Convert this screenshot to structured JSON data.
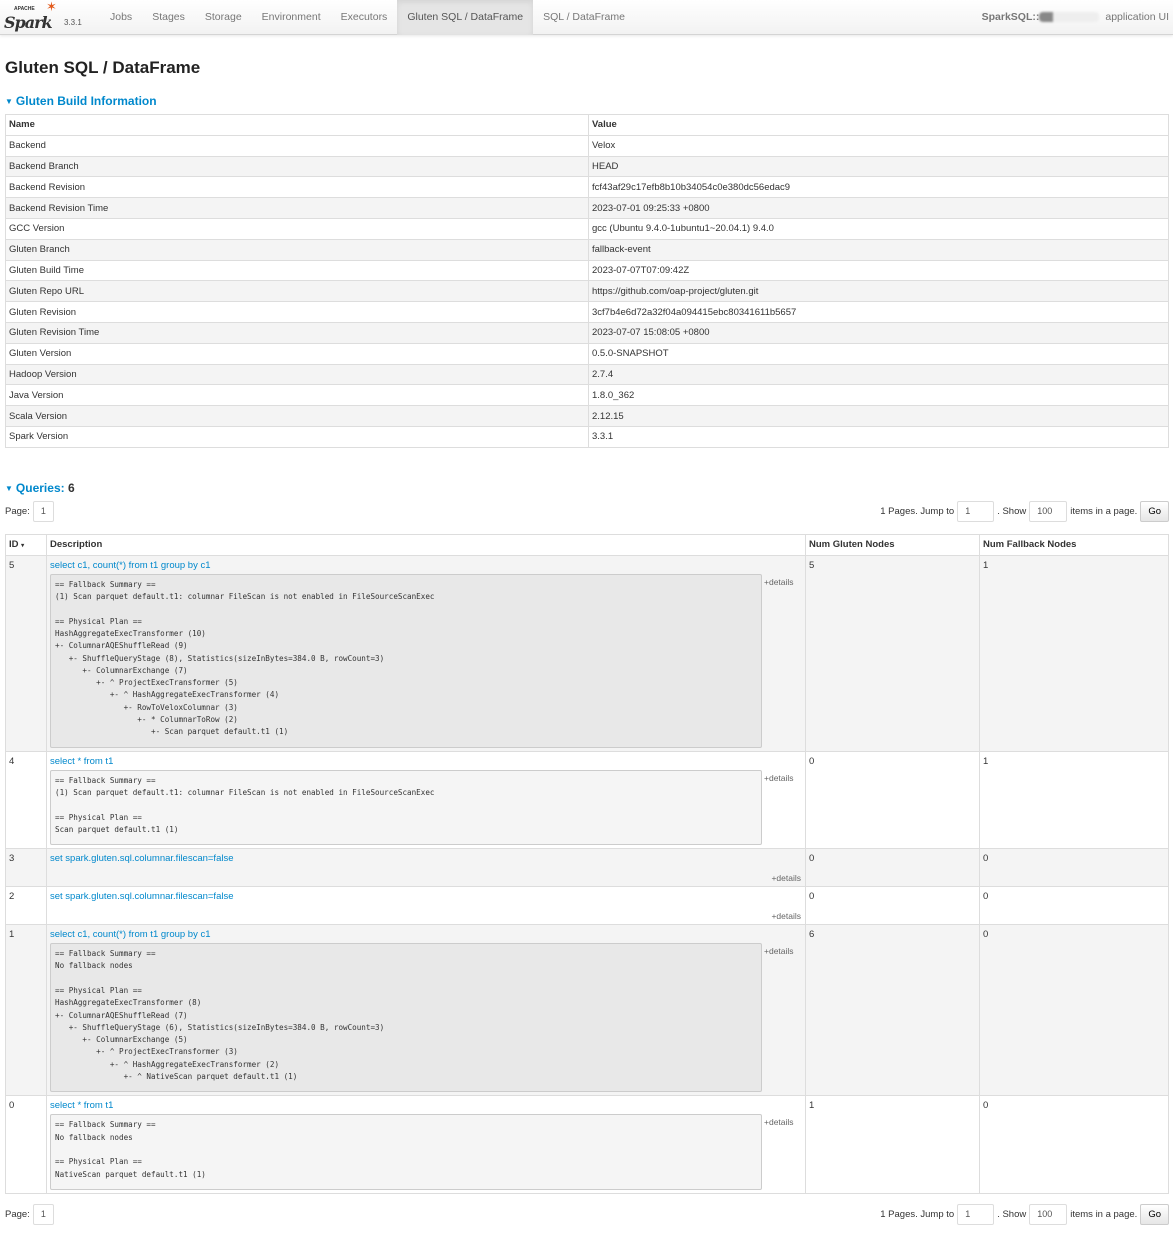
{
  "nav": {
    "logo_text": "Spark",
    "logo_apache": "APACHE",
    "version": "3.3.1",
    "tabs": [
      "Jobs",
      "Stages",
      "Storage",
      "Environment",
      "Executors",
      "Gluten SQL / DataFrame",
      "SQL / DataFrame"
    ],
    "active_tab": 5,
    "app_prefix": "SparkSQL::",
    "app_suffix": "application UI"
  },
  "page_title": "Gluten SQL / DataFrame",
  "build": {
    "heading": "Gluten Build Information",
    "columns": [
      "Name",
      "Value"
    ],
    "rows": [
      [
        "Backend",
        "Velox"
      ],
      [
        "Backend Branch",
        "HEAD"
      ],
      [
        "Backend Revision",
        "fcf43af29c17efb8b10b34054c0e380dc56edac9"
      ],
      [
        "Backend Revision Time",
        "2023-07-01 09:25:33 +0800"
      ],
      [
        "GCC Version",
        "gcc (Ubuntu 9.4.0-1ubuntu1~20.04.1) 9.4.0"
      ],
      [
        "Gluten Branch",
        "fallback-event"
      ],
      [
        "Gluten Build Time",
        "2023-07-07T07:09:42Z"
      ],
      [
        "Gluten Repo URL",
        "https://github.com/oap-project/gluten.git"
      ],
      [
        "Gluten Revision",
        "3cf7b4e6d72a32f04a094415ebc80341611b5657"
      ],
      [
        "Gluten Revision Time",
        "2023-07-07 15:08:05 +0800"
      ],
      [
        "Gluten Version",
        "0.5.0-SNAPSHOT"
      ],
      [
        "Hadoop Version",
        "2.7.4"
      ],
      [
        "Java Version",
        "1.8.0_362"
      ],
      [
        "Scala Version",
        "2.12.15"
      ],
      [
        "Spark Version",
        "3.3.1"
      ]
    ]
  },
  "queries": {
    "heading": "Queries:",
    "count": "6",
    "pager": {
      "page_label": "Page:",
      "page": "1",
      "pages_text": "1 Pages. Jump to",
      "jump_value": "1",
      "show_text": ". Show",
      "show_value": "100",
      "items_text": "items in a page.",
      "go_label": "Go"
    },
    "columns": [
      "ID",
      "Description",
      "Num Gluten Nodes",
      "Num Fallback Nodes"
    ],
    "sort_indicator": "▾",
    "details_label": "+details",
    "rows": [
      {
        "id": "5",
        "description": "select c1, count(*) from t1 group by c1",
        "gluten": "5",
        "fallback": "1",
        "plan": "== Fallback Summary ==\n(1) Scan parquet default.t1: columnar FileScan is not enabled in FileSourceScanExec\n\n== Physical Plan ==\nHashAggregateExecTransformer (10)\n+- ColumnarAQEShuffleRead (9)\n   +- ShuffleQueryStage (8), Statistics(sizeInBytes=384.0 B, rowCount=3)\n      +- ColumnarExchange (7)\n         +- ^ ProjectExecTransformer (5)\n            +- ^ HashAggregateExecTransformer (4)\n               +- RowToVeloxColumnar (3)\n                  +- * ColumnarToRow (2)\n                     +- Scan parquet default.t1 (1)\n"
      },
      {
        "id": "4",
        "description": "select * from t1",
        "gluten": "0",
        "fallback": "1",
        "plan": "== Fallback Summary ==\n(1) Scan parquet default.t1: columnar FileScan is not enabled in FileSourceScanExec\n\n== Physical Plan ==\nScan parquet default.t1 (1)\n"
      },
      {
        "id": "3",
        "description": "set spark.gluten.sql.columnar.filescan=false",
        "gluten": "0",
        "fallback": "0",
        "plan": ""
      },
      {
        "id": "2",
        "description": "set spark.gluten.sql.columnar.filescan=false",
        "gluten": "0",
        "fallback": "0",
        "plan": ""
      },
      {
        "id": "1",
        "description": "select c1, count(*) from t1 group by c1",
        "gluten": "6",
        "fallback": "0",
        "plan": "== Fallback Summary ==\nNo fallback nodes\n\n== Physical Plan ==\nHashAggregateExecTransformer (8)\n+- ColumnarAQEShuffleRead (7)\n   +- ShuffleQueryStage (6), Statistics(sizeInBytes=384.0 B, rowCount=3)\n      +- ColumnarExchange (5)\n         +- ^ ProjectExecTransformer (3)\n            +- ^ HashAggregateExecTransformer (2)\n               +- ^ NativeScan parquet default.t1 (1)\n"
      },
      {
        "id": "0",
        "description": "select * from t1",
        "gluten": "1",
        "fallback": "0",
        "plan": "== Fallback Summary ==\nNo fallback nodes\n\n== Physical Plan ==\nNativeScan parquet default.t1 (1)\n"
      }
    ]
  }
}
